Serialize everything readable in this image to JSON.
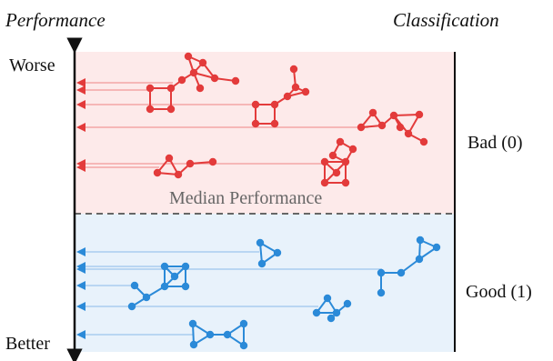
{
  "headers": {
    "left": "Performance",
    "right": "Classification"
  },
  "axis": {
    "top": "Worse",
    "bottom": "Better"
  },
  "classes": {
    "bad": "Bad (0)",
    "good": "Good (1)"
  },
  "median_label": "Median Performance",
  "colors": {
    "bad": "#e33b3b",
    "good": "#2b8ad8",
    "bad_bg": "#fdeaea",
    "good_bg": "#e8f2fb",
    "median_line": "#666666"
  }
}
